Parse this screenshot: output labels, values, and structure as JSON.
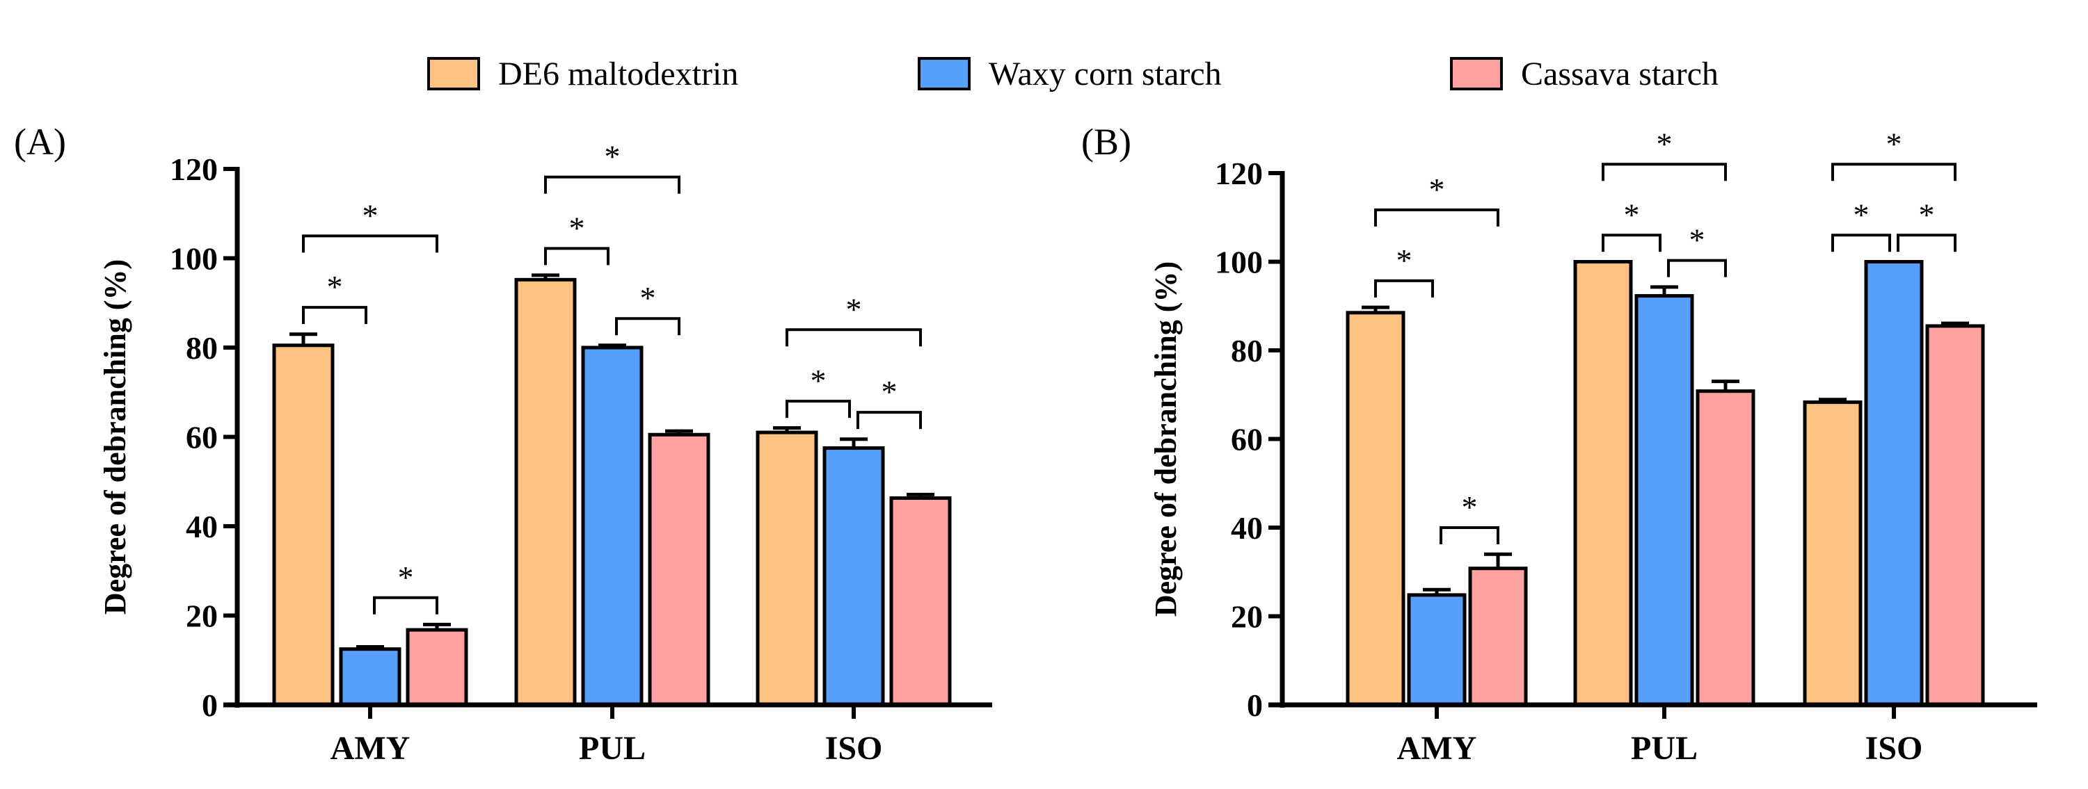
{
  "chart_data": [
    {
      "type": "bar",
      "panel_label": "(A)",
      "categories": [
        "AMY",
        "PUL",
        "ISO"
      ],
      "ylabel": "Degree of debranching (%)",
      "ylim": [
        0,
        120
      ],
      "yticks": [
        "0",
        "20",
        "40",
        "60",
        "80",
        "100",
        "120"
      ],
      "series": [
        {
          "name": "DE6 maltodextrin",
          "values": [
            80.5,
            95.2,
            61.0
          ],
          "errors": [
            2.5,
            1.0,
            1.0
          ]
        },
        {
          "name": "Waxy corn starch",
          "values": [
            12.5,
            80.0,
            57.5
          ],
          "errors": [
            0.5,
            0.5,
            2.0
          ]
        },
        {
          "name": "Cassava starch",
          "values": [
            16.8,
            60.5,
            46.3
          ],
          "errors": [
            1.2,
            0.8,
            0.8
          ]
        }
      ],
      "significance": {
        "label": "*",
        "pairs": [
          [
            0,
            1
          ],
          [
            1,
            2
          ],
          [
            0,
            2
          ]
        ]
      }
    },
    {
      "type": "bar",
      "panel_label": "(B)",
      "categories": [
        "AMY",
        "PUL",
        "ISO"
      ],
      "ylabel": "Degree of debranching (%)",
      "ylim": [
        0,
        120
      ],
      "yticks": [
        "0",
        "20",
        "40",
        "60",
        "80",
        "100",
        "120"
      ],
      "series": [
        {
          "name": "DE6 maltodextrin",
          "values": [
            88.5,
            100.0,
            68.3
          ],
          "errors": [
            1.2,
            0,
            0.6
          ]
        },
        {
          "name": "Waxy corn starch",
          "values": [
            24.8,
            92.3,
            100.0
          ],
          "errors": [
            1.2,
            2.0,
            0
          ]
        },
        {
          "name": "Cassava starch",
          "values": [
            30.8,
            70.8,
            85.5
          ],
          "errors": [
            3.2,
            2.2,
            0.6
          ]
        }
      ],
      "significance": {
        "label": "*",
        "pairs": [
          [
            0,
            1
          ],
          [
            1,
            2
          ],
          [
            0,
            2
          ]
        ]
      }
    }
  ],
  "legend": {
    "placement": "top-center",
    "items": [
      {
        "label": "DE6 maltodextrin",
        "color": "#FEC282"
      },
      {
        "label": "Waxy corn starch",
        "color": "#56A0FB"
      },
      {
        "label": "Cassava starch",
        "color": "#FDA1A1"
      }
    ]
  }
}
